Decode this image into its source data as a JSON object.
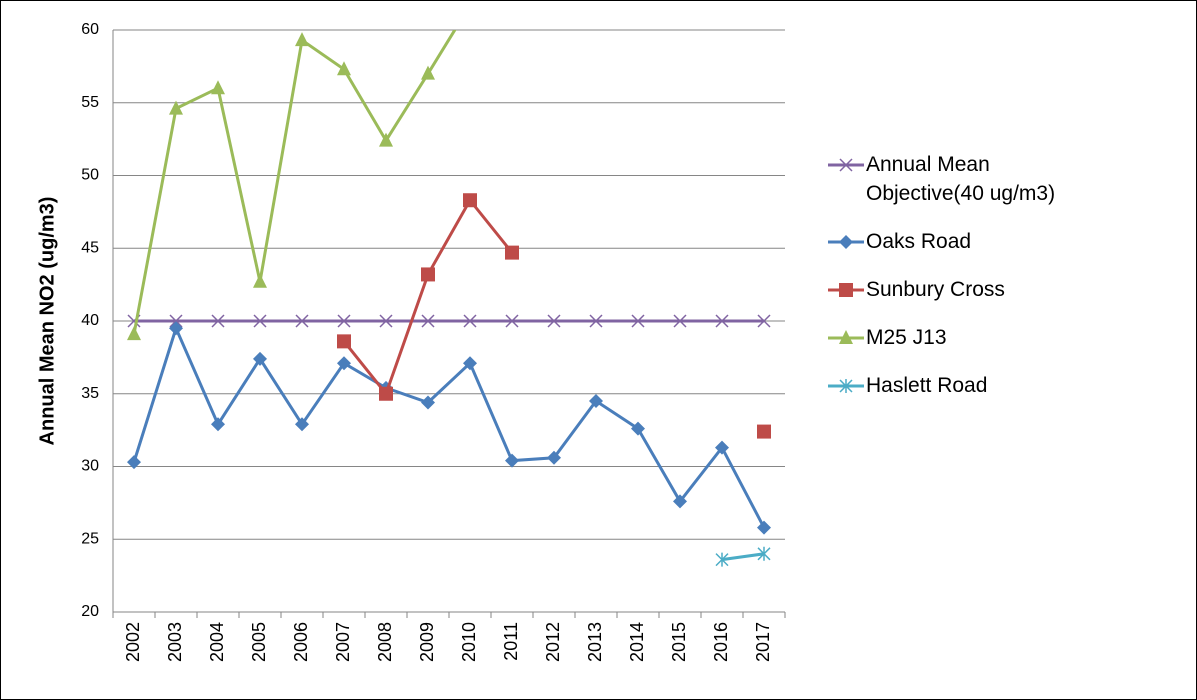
{
  "chart_data": {
    "type": "line",
    "y_label": "Annual Mean NO2 (ug/m3)",
    "categories": [
      "2002",
      "2003",
      "2004",
      "2005",
      "2006",
      "2007",
      "2008",
      "2009",
      "2010",
      "2011",
      "2012",
      "2013",
      "2014",
      "2015",
      "2016",
      "2017"
    ],
    "ylim": [
      20,
      60
    ],
    "yticks": [
      20,
      25,
      30,
      35,
      40,
      45,
      50,
      55,
      60
    ],
    "grid": true,
    "series": [
      {
        "name": "Annual Mean Objective(40 ug/m3)",
        "color": "#8064a2",
        "marker": "x",
        "values": [
          40,
          40,
          40,
          40,
          40,
          40,
          40,
          40,
          40,
          40,
          40,
          40,
          40,
          40,
          40,
          40
        ]
      },
      {
        "name": "Oaks Road",
        "color": "#4a7ebb",
        "marker": "diamond",
        "values": [
          30.3,
          39.5,
          32.9,
          37.4,
          32.9,
          37.1,
          35.4,
          34.4,
          37.1,
          30.4,
          30.6,
          34.5,
          32.6,
          27.6,
          31.3,
          25.8
        ]
      },
      {
        "name": "Sunbury Cross",
        "color": "#be4b48",
        "marker": "square",
        "values": [
          null,
          null,
          null,
          null,
          null,
          38.6,
          35.0,
          43.2,
          48.3,
          44.7,
          null,
          null,
          null,
          null,
          null,
          32.4
        ]
      },
      {
        "name": "M25 J13",
        "color": "#9bbb59",
        "marker": "triangle",
        "values": [
          39.1,
          54.6,
          56.0,
          42.7,
          59.3,
          57.3,
          52.4,
          57.0,
          61.7,
          null,
          null,
          null,
          null,
          null,
          null,
          null
        ]
      },
      {
        "name": "Haslett Road",
        "color": "#4bacc6",
        "marker": "star",
        "values": [
          null,
          null,
          null,
          null,
          null,
          null,
          null,
          null,
          null,
          null,
          null,
          null,
          null,
          null,
          23.6,
          24.0
        ]
      }
    ]
  }
}
